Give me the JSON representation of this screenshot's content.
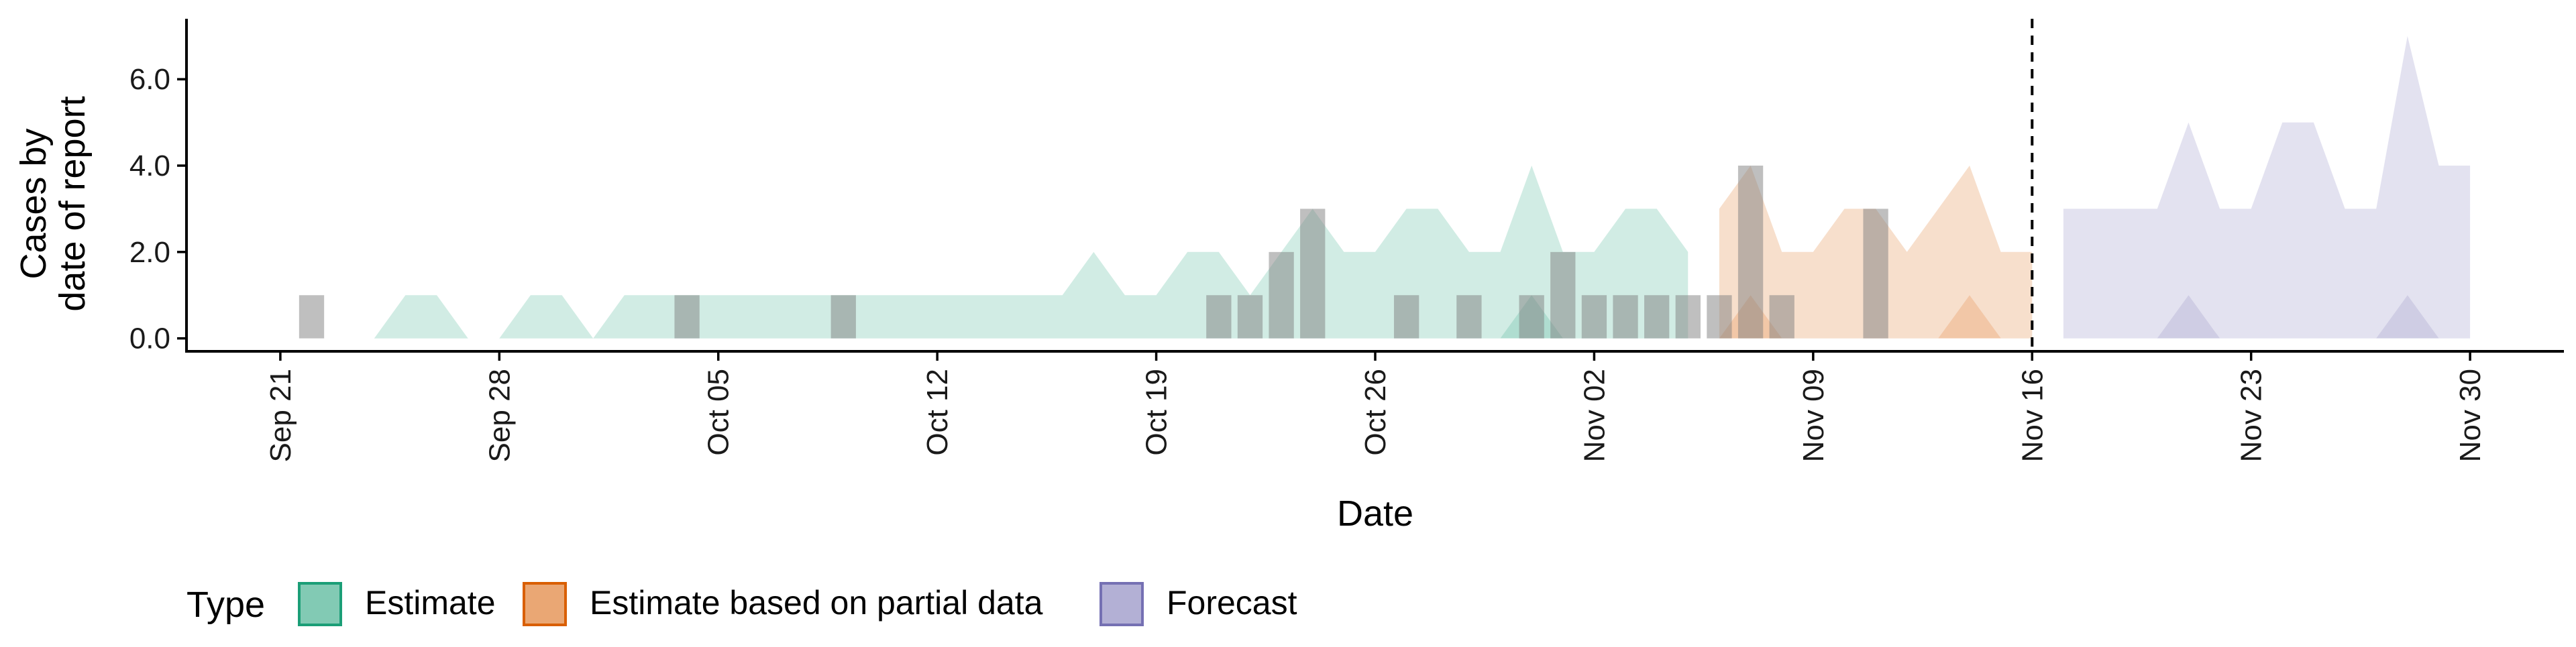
{
  "chart_data": {
    "type": "area",
    "title": "",
    "xlabel": "Date",
    "ylabel_lines": [
      "Cases by",
      "date of report"
    ],
    "ylim": [
      -0.3,
      7.4
    ],
    "y_ticks": [
      "0.0",
      "2.0",
      "4.0",
      "6.0"
    ],
    "y_tick_values": [
      0,
      2,
      4,
      6
    ],
    "x_ticks": [
      "Sep 21",
      "Sep 28",
      "Oct 05",
      "Oct 12",
      "Oct 19",
      "Oct 26",
      "Nov 02",
      "Nov 09",
      "Nov 16",
      "Nov 23",
      "Nov 30"
    ],
    "x_tick_dates": [
      "2020-09-21",
      "2020-09-28",
      "2020-10-05",
      "2020-10-12",
      "2020-10-19",
      "2020-10-26",
      "2020-11-02",
      "2020-11-09",
      "2020-11-16",
      "2020-11-23",
      "2020-11-30"
    ],
    "x_range": [
      "2020-09-18",
      "2020-12-03"
    ],
    "grid": false,
    "legend": {
      "title": "Type",
      "position": "bottom",
      "entries": [
        {
          "name": "Estimate",
          "fill": "#1b9e77",
          "border": "#1b9e77"
        },
        {
          "name": "Estimate based on partial data",
          "fill": "#d95f02",
          "border": "#d95f02"
        },
        {
          "name": "Forecast",
          "fill": "#7570b3",
          "border": "#7570b3"
        }
      ]
    },
    "forecast_date": "2020-11-16",
    "reported_cases": [
      {
        "date": "2020-09-22",
        "value": 1
      },
      {
        "date": "2020-10-04",
        "value": 1
      },
      {
        "date": "2020-10-09",
        "value": 1
      },
      {
        "date": "2020-10-21",
        "value": 1
      },
      {
        "date": "2020-10-22",
        "value": 1
      },
      {
        "date": "2020-10-23",
        "value": 2
      },
      {
        "date": "2020-10-24",
        "value": 3
      },
      {
        "date": "2020-10-27",
        "value": 1
      },
      {
        "date": "2020-10-29",
        "value": 1
      },
      {
        "date": "2020-10-31",
        "value": 1
      },
      {
        "date": "2020-11-01",
        "value": 2
      },
      {
        "date": "2020-11-02",
        "value": 1
      },
      {
        "date": "2020-11-03",
        "value": 1
      },
      {
        "date": "2020-11-04",
        "value": 1
      },
      {
        "date": "2020-11-05",
        "value": 1
      },
      {
        "date": "2020-11-06",
        "value": 1
      },
      {
        "date": "2020-11-07",
        "value": 4
      },
      {
        "date": "2020-11-08",
        "value": 1
      },
      {
        "date": "2020-11-11",
        "value": 3
      }
    ],
    "series": [
      {
        "name": "Estimate",
        "color": "#1b9e77",
        "upper": [
          {
            "date": "2020-09-22",
            "value": 0
          },
          {
            "date": "2020-09-25",
            "value": 1
          },
          {
            "date": "2020-09-26",
            "value": 1
          },
          {
            "date": "2020-09-27",
            "value": 0
          },
          {
            "date": "2020-09-28",
            "value": 0
          },
          {
            "date": "2020-09-29",
            "value": 1
          },
          {
            "date": "2020-09-30",
            "value": 1
          },
          {
            "date": "2020-10-01",
            "value": 0
          },
          {
            "date": "2020-10-02",
            "value": 1
          },
          {
            "date": "2020-10-16",
            "value": 1
          },
          {
            "date": "2020-10-17",
            "value": 2
          },
          {
            "date": "2020-10-18",
            "value": 1
          },
          {
            "date": "2020-10-19",
            "value": 1
          },
          {
            "date": "2020-10-20",
            "value": 2
          },
          {
            "date": "2020-10-21",
            "value": 2
          },
          {
            "date": "2020-10-22",
            "value": 1
          },
          {
            "date": "2020-10-23",
            "value": 2
          },
          {
            "date": "2020-10-24",
            "value": 3
          },
          {
            "date": "2020-10-25",
            "value": 2
          },
          {
            "date": "2020-10-26",
            "value": 2
          },
          {
            "date": "2020-10-27",
            "value": 3
          },
          {
            "date": "2020-10-28",
            "value": 3
          },
          {
            "date": "2020-10-29",
            "value": 2
          },
          {
            "date": "2020-10-30",
            "value": 2
          },
          {
            "date": "2020-10-31",
            "value": 4
          },
          {
            "date": "2020-11-01",
            "value": 2
          },
          {
            "date": "2020-11-02",
            "value": 2
          },
          {
            "date": "2020-11-03",
            "value": 3
          },
          {
            "date": "2020-11-04",
            "value": 3
          },
          {
            "date": "2020-11-05",
            "value": 2
          }
        ],
        "lower": [
          {
            "date": "2020-10-30",
            "value": 0
          },
          {
            "date": "2020-10-31",
            "value": 1
          },
          {
            "date": "2020-11-01",
            "value": 0
          }
        ]
      },
      {
        "name": "Estimate based on partial data",
        "color": "#d95f02",
        "upper": [
          {
            "date": "2020-11-06",
            "value": 3
          },
          {
            "date": "2020-11-07",
            "value": 4
          },
          {
            "date": "2020-11-08",
            "value": 2
          },
          {
            "date": "2020-11-09",
            "value": 2
          },
          {
            "date": "2020-11-10",
            "value": 3
          },
          {
            "date": "2020-11-11",
            "value": 3
          },
          {
            "date": "2020-11-12",
            "value": 2
          },
          {
            "date": "2020-11-13",
            "value": 3
          },
          {
            "date": "2020-11-14",
            "value": 4
          },
          {
            "date": "2020-11-15",
            "value": 2
          },
          {
            "date": "2020-11-16",
            "value": 2
          }
        ],
        "lower": [
          {
            "date": "2020-11-06",
            "value": 0
          },
          {
            "date": "2020-11-07",
            "value": 1
          },
          {
            "date": "2020-11-08",
            "value": 0
          },
          {
            "date": "2020-11-13",
            "value": 0
          },
          {
            "date": "2020-11-14",
            "value": 1
          },
          {
            "date": "2020-11-15",
            "value": 0
          }
        ]
      },
      {
        "name": "Forecast",
        "color": "#7570b3",
        "upper": [
          {
            "date": "2020-11-17",
            "value": 3
          },
          {
            "date": "2020-11-20",
            "value": 3
          },
          {
            "date": "2020-11-21",
            "value": 5
          },
          {
            "date": "2020-11-22",
            "value": 3
          },
          {
            "date": "2020-11-23",
            "value": 3
          },
          {
            "date": "2020-11-24",
            "value": 5
          },
          {
            "date": "2020-11-26",
            "value": 3
          },
          {
            "date": "2020-11-28",
            "value": 7
          },
          {
            "date": "2020-11-29",
            "value": 4
          },
          {
            "date": "2020-11-30",
            "value": 4
          }
        ],
        "lower": [
          {
            "date": "2020-11-20",
            "value": 0
          },
          {
            "date": "2020-11-21",
            "value": 1
          },
          {
            "date": "2020-11-22",
            "value": 0
          },
          {
            "date": "2020-11-27",
            "value": 0
          },
          {
            "date": "2020-11-28",
            "value": 1
          },
          {
            "date": "2020-11-29",
            "value": 0
          }
        ]
      }
    ]
  }
}
